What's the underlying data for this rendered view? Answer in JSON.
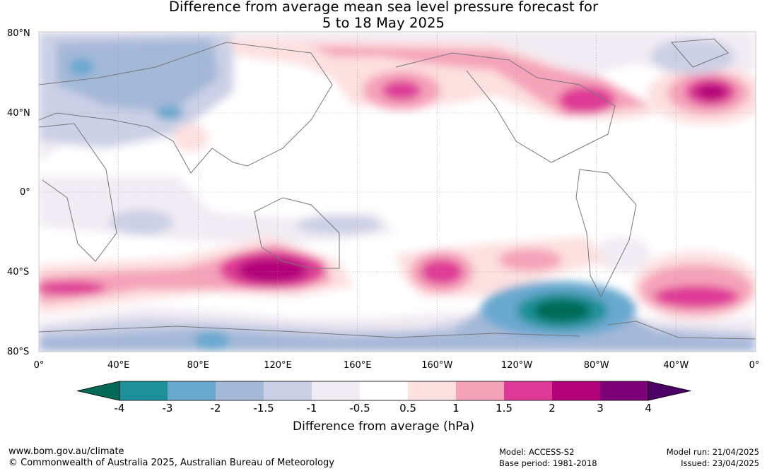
{
  "title": {
    "line1": "Difference from average mean sea level pressure forecast for",
    "line2": "5 to 18 May 2025"
  },
  "map": {
    "projection": "equirectangular",
    "lon_range": "0° to 360° (0° to 0°)",
    "lat_range": "80°S to 80°N",
    "grid": true,
    "lat_labels": [
      "80°N",
      "40°N",
      "0°",
      "40°S",
      "80°S"
    ],
    "lon_labels": [
      "0°",
      "40°E",
      "80°E",
      "120°E",
      "160°E",
      "160°W",
      "120°W",
      "80°W",
      "40°W",
      "0°"
    ],
    "anomaly_features": [
      {
        "region": "North Pacific (~175°E, 45°N)",
        "level_hPa": 2
      },
      {
        "region": "North Atlantic (~25°W, 48°N)",
        "level_hPa": 3
      },
      {
        "region": "Canada (~85°W, 50°N)",
        "level_hPa": 2
      },
      {
        "region": "Southern Indian Ocean (~120°E, 40°S)",
        "level_hPa": 3
      },
      {
        "region": "South Pacific (~160°W, 40°S)",
        "level_hPa": 2
      },
      {
        "region": "South Atlantic (~30°W, 50°S)",
        "level_hPa": 2
      },
      {
        "region": "Amundsen/Bellingshausen Sea (~95°W, 62°S)",
        "level_hPa": -4
      },
      {
        "region": "Antarctica",
        "level_hPa": -1.5
      }
    ]
  },
  "colorbar": {
    "ticks": [
      "-4",
      "-3",
      "-2",
      "-1.5",
      "-1",
      "-0.5",
      "0.5",
      "1",
      "1.5",
      "2",
      "3",
      "4"
    ],
    "colors": {
      "below_min": "#006a56",
      "bins": [
        "#1d9199",
        "#69a9d0",
        "#a4b8d8",
        "#ccd0e6",
        "#f1ebf3",
        "#ffffff",
        "#fde0e0",
        "#f5a3b9",
        "#df3a97",
        "#b3027a",
        "#7d0079"
      ],
      "above_max": "#4d0066"
    },
    "title": "Difference from average (hPa)"
  },
  "footer": {
    "url": "www.bom.gov.au/climate",
    "copyright": "© Commonwealth of Australia 2025, Australian Bureau of Meteorology",
    "model": "Model: ACCESS-S2",
    "base_period": "Base period: 1981-2018",
    "model_run": "Model run: 21/04/2025",
    "issued": "Issued: 23/04/2025"
  }
}
